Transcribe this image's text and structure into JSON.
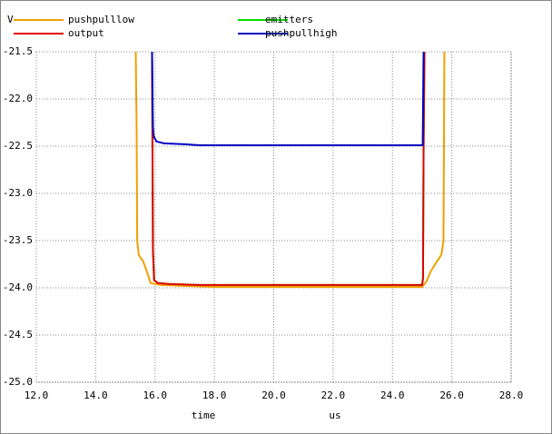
{
  "chart_data": {
    "type": "line",
    "y_label": "V",
    "x_label": "time",
    "x_unit": "us",
    "xlim": [
      12,
      28
    ],
    "xticks": [
      {
        "value": 12,
        "label": "12.0"
      },
      {
        "value": 14,
        "label": "14.0"
      },
      {
        "value": 16,
        "label": "16.0"
      },
      {
        "value": 18,
        "label": "18.0"
      },
      {
        "value": 20,
        "label": "20.0"
      },
      {
        "value": 22,
        "label": "22.0"
      },
      {
        "value": 24,
        "label": "24.0"
      },
      {
        "value": 26,
        "label": "26.0"
      },
      {
        "value": 28,
        "label": "28.0"
      }
    ],
    "ylim": [
      -25,
      -21.5
    ],
    "yticks": [
      -21.5,
      {
        "value": -22,
        "label": "-22.0"
      },
      -22.5,
      {
        "value": -23,
        "label": "-23.0"
      },
      -23.5,
      {
        "value": -24,
        "label": "-24.0"
      },
      -24.5,
      {
        "value": -25,
        "label": "-25.0"
      }
    ],
    "grid": true,
    "series": [
      {
        "name": "pushpulllow",
        "color": "#f0a000",
        "x": [
          15.35,
          15.38,
          15.4,
          15.45,
          15.6,
          15.75,
          15.85,
          16.2,
          17,
          18,
          24,
          25.0,
          25.15,
          25.3,
          25.5,
          25.65,
          25.72,
          25.75
        ],
        "values": [
          -21.5,
          -22.3,
          -23.5,
          -23.65,
          -23.72,
          -23.85,
          -23.95,
          -23.97,
          -23.98,
          -23.99,
          -23.99,
          -23.99,
          -23.93,
          -23.82,
          -23.72,
          -23.65,
          -23.5,
          -21.5
        ]
      },
      {
        "name": "output",
        "color": "#e00000",
        "x": [
          15.9,
          15.93,
          15.97,
          16.1,
          16.5,
          17.5,
          25.0,
          25.03,
          25.05,
          25.08
        ],
        "values": [
          -21.5,
          -23.6,
          -23.92,
          -23.95,
          -23.96,
          -23.97,
          -23.97,
          -23.9,
          -22.5,
          -21.5
        ]
      },
      {
        "name": "emitters",
        "color": "#00e000",
        "x": [
          15.9,
          15.93,
          15.97,
          16.1,
          16.5,
          17.5,
          25.0,
          25.03,
          25.05,
          25.08
        ],
        "values": [
          -21.5,
          -23.6,
          -23.92,
          -23.95,
          -23.96,
          -23.97,
          -23.97,
          -23.9,
          -22.5,
          -21.5
        ]
      },
      {
        "name": "pushpullhigh",
        "color": "#0000c0",
        "x": [
          15.9,
          15.93,
          15.96,
          16.05,
          16.3,
          17,
          17.5,
          25.0,
          25.02,
          25.05
        ],
        "values": [
          -21.5,
          -22.3,
          -22.4,
          -22.45,
          -22.47,
          -22.48,
          -22.49,
          -22.49,
          -22.49,
          -21.5
        ]
      }
    ]
  }
}
